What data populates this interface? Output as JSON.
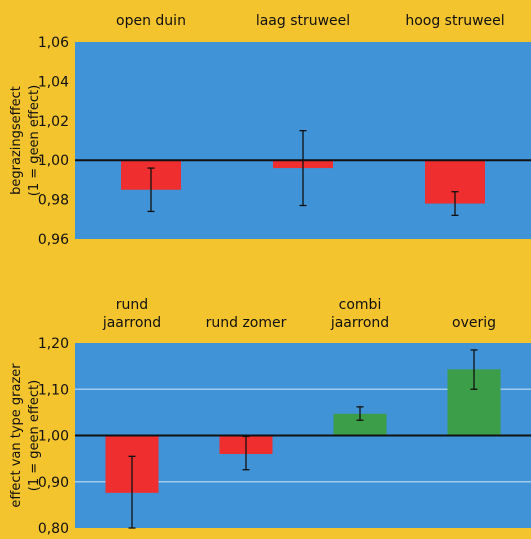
{
  "chart_data": [
    {
      "type": "bar",
      "title": "",
      "categories": [
        "open duin",
        "laag struweel",
        "hoog struweel"
      ],
      "values": [
        0.985,
        0.996,
        0.978
      ],
      "error_low": [
        0.974,
        0.977,
        0.972
      ],
      "error_high": [
        0.996,
        1.015,
        0.984
      ],
      "bar_colors": [
        "#ee2e2f",
        "#ee2e2f",
        "#ee2e2f"
      ],
      "xlabel": "",
      "ylabel": [
        "begrazingseffect",
        "(1 = geen effect)"
      ],
      "ylim": [
        0.96,
        1.06
      ],
      "yticks": [
        0.96,
        0.98,
        1.0,
        1.02,
        1.04,
        1.06
      ],
      "ytick_labels": [
        "0,96",
        "0,98",
        "1,00",
        "1,02",
        "1,04",
        "1,06"
      ],
      "baseline": 1.0,
      "category_labels_position": "top",
      "grid": false
    },
    {
      "type": "bar",
      "title": "",
      "categories": [
        [
          "rund",
          "jaarrond"
        ],
        [
          "rund zomer"
        ],
        [
          "combi",
          "jaarrond"
        ],
        [
          "overig"
        ]
      ],
      "values": [
        0.876,
        0.96,
        1.047,
        1.143
      ],
      "error_low": [
        0.8,
        0.926,
        1.033,
        1.1
      ],
      "error_high": [
        0.955,
        0.998,
        1.062,
        1.185
      ],
      "bar_colors": [
        "#ee2e2f",
        "#ee2e2f",
        "#3c9e48",
        "#3c9e48"
      ],
      "xlabel": "",
      "ylabel": [
        "effect van type grazer",
        "(1 = geen effect)"
      ],
      "ylim": [
        0.8,
        1.2
      ],
      "yticks": [
        0.8,
        0.9,
        1.0,
        1.1,
        1.2
      ],
      "ytick_labels": [
        "0,80",
        "0,90",
        "1,00",
        "1,10",
        "1,20"
      ],
      "baseline": 1.0,
      "category_labels_position": "top",
      "grid": true
    }
  ],
  "colors": {
    "background": "#f4c42f",
    "plot_area": "#3f93d6",
    "gridline": "#9fcbee",
    "baseline": "#111111"
  }
}
